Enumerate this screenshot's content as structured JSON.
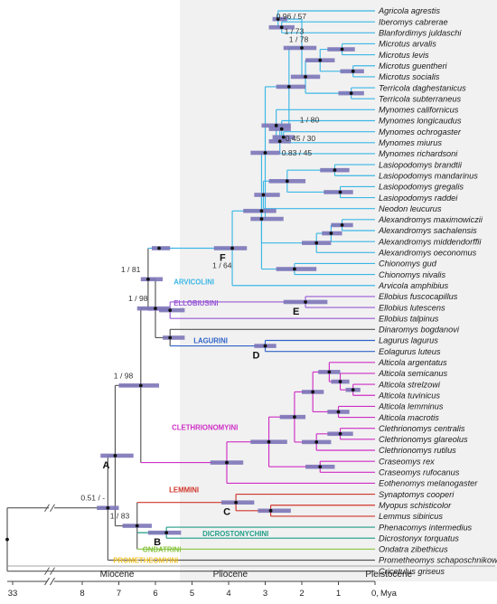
{
  "axis": {
    "unit": "Mya",
    "ticks": [
      {
        "label": "33",
        "value": 33
      },
      {
        "label": "8",
        "value": 8
      },
      {
        "label": "7",
        "value": 7
      },
      {
        "label": "6",
        "value": 6
      },
      {
        "label": "5",
        "value": 5
      },
      {
        "label": "4",
        "value": 4
      },
      {
        "label": "3",
        "value": 3
      },
      {
        "label": "2",
        "value": 2
      },
      {
        "label": "1",
        "value": 1
      },
      {
        "label": "0,",
        "value": 0
      }
    ]
  },
  "epochs": [
    {
      "name": "Miocene",
      "from": 33,
      "to": 5.33
    },
    {
      "name": "Pliocene",
      "from": 5.33,
      "to": 2.58
    },
    {
      "name": "Pleistocene",
      "from": 2.58,
      "to": 0
    }
  ],
  "taxa": [
    "Agricola agrestis",
    "Iberomys cabrerae",
    "Blanfordimys juldaschi",
    "Microtus arvalis",
    "Microtus levis",
    "Microtus guentheri",
    "Microtus socialis",
    "Terricola daghestanicus",
    "Terricola subterraneus",
    "Mynomes californicus",
    "Mynomes longicaudus",
    "Mynomes ochrogaster",
    "Mynomes miurus",
    "Mynomes richardsoni",
    "Lasiopodomys brandtii",
    "Lasiopodomys mandarinus",
    "Lasiopodomys gregalis",
    "Lasiopodomys raddei",
    "Neodon leucurus",
    "Alexandromys maximowiczii",
    "Alexandromys sachalensis",
    "Alexandromys middendorffii",
    "Alexandromys oeconomus",
    "Chionomys gud",
    "Chionomys nivalis",
    "Arvicola amphibius",
    "Ellobius fuscocapillus",
    "Ellobius lutescens",
    "Ellobius talpinus",
    "Dinaromys bogdanovi",
    "Lagurus lagurus",
    "Eolagurus luteus",
    "Alticola argentatus",
    "Alticola semicanus",
    "Alticola strelzowi",
    "Alticola tuvinicus",
    "Alticola lemminus",
    "Alticola macrotis",
    "Clethrionomys centralis",
    "Clethrionomys glareolus",
    "Clethrionomys rutilus",
    "Craseomys rex",
    "Craseomys rufocanus",
    "Eothenomys melanogaster",
    "Synaptomys cooperi",
    "Myopus schisticolor",
    "Lemmus sibiricus",
    "Phenacomys intermedius",
    "Dicrostonyx torquatus",
    "Ondatra zibethicus",
    "Prometheomys schaposchnikowi",
    "Cricetulus griseus"
  ],
  "tribes": [
    {
      "name": "ARVICOLINI",
      "color": "#3bb7e6"
    },
    {
      "name": "ELLOBIUSINI",
      "color": "#9a59d6"
    },
    {
      "name": "LAGURINI",
      "color": "#2f63c8"
    },
    {
      "name": "CLETHRIONOMYINI",
      "color": "#cf2ec6"
    },
    {
      "name": "LEMMINI",
      "color": "#d0352b"
    },
    {
      "name": "DICROSTONYCHINI",
      "color": "#1f9c86"
    },
    {
      "name": "ONDATRINI",
      "color": "#86c43d"
    },
    {
      "name": "PROMETHEOMYINI",
      "color": "#f0c229"
    }
  ],
  "support_values": [
    "0.96 / 57",
    "1 / 73",
    "1 / 78",
    "1 / 80",
    "0.45 / 30",
    "0.83 / 45",
    "1 / 64",
    "1 / 81",
    "1 / 98",
    "1 / 98",
    "0.51 / -",
    "1 / 83"
  ],
  "node_letters": [
    "A",
    "B",
    "C",
    "D",
    "E",
    "F"
  ],
  "colors": {
    "outgroup_branch": "#555555",
    "hpd_bar": "#7c76b8",
    "node_dot": "#111111"
  }
}
